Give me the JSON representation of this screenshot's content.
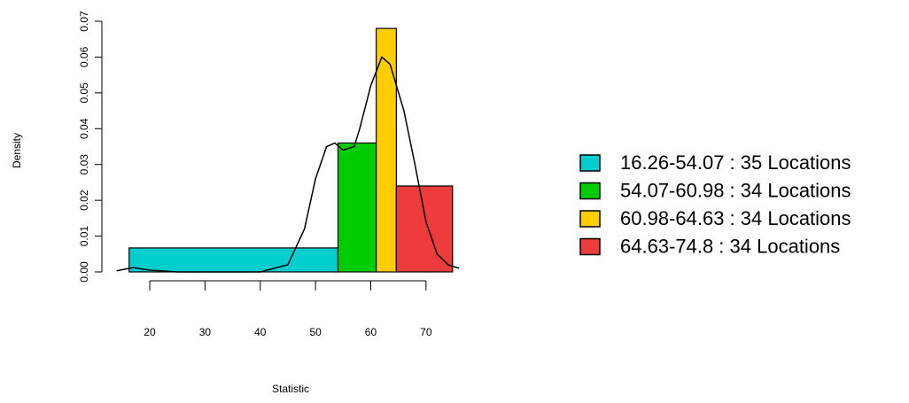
{
  "chart_data": {
    "type": "histogram",
    "x_label": "Statistic",
    "y_label": "Density",
    "bins": [
      16.26,
      54.07,
      60.98,
      64.63,
      74.8
    ],
    "values": [
      0.0067,
      0.036,
      0.068,
      0.024
    ],
    "colors": [
      "#00cdcd",
      "#00cd00",
      "#ffcd00",
      "#ee3b3b"
    ],
    "legend": [
      "16.26-54.07 : 35 Locations",
      "54.07-60.98 : 34 Locations",
      "60.98-64.63 : 34 Locations",
      "64.63-74.8 : 34 Locations"
    ],
    "density_curve": {
      "color": "#000000",
      "x": [
        14,
        17,
        20,
        25,
        40,
        45,
        48,
        50,
        52,
        53.5,
        55,
        57,
        58,
        60,
        62,
        63.5,
        66,
        68,
        70,
        72,
        74,
        76
      ],
      "y": [
        0.0003,
        0.0012,
        0.0005,
        0,
        0,
        0.002,
        0.012,
        0.026,
        0.035,
        0.036,
        0.034,
        0.035,
        0.04,
        0.052,
        0.06,
        0.058,
        0.045,
        0.03,
        0.014,
        0.005,
        0.002,
        0.001
      ]
    },
    "xlim": [
      13.9,
      77.4
    ],
    "ylim": [
      0,
      0.07
    ],
    "xticks": [
      20,
      30,
      40,
      50,
      60,
      70
    ],
    "yticks": [
      {
        "value": 0,
        "label": "0.00"
      },
      0.01,
      0.02,
      0.03,
      0.04,
      0.05,
      0.06,
      0.07
    ]
  }
}
